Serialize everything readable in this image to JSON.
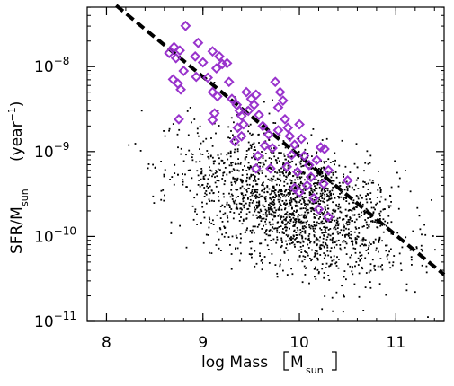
{
  "chart_data": {
    "type": "scatter",
    "xlabel": {
      "text": "log Mass",
      "unit_main": "M",
      "unit_sub": "sun"
    },
    "ylabel": {
      "text": "SFR/M",
      "sub": "sun",
      "unit": "year",
      "unit_sup": "−1"
    },
    "xlim": [
      7.8,
      11.5
    ],
    "ylim_log10": [
      -11,
      -7.3
    ],
    "y_scale": "log",
    "x_ticks": [
      {
        "value": 8,
        "label": "8"
      },
      {
        "value": 9,
        "label": "9"
      },
      {
        "value": 10,
        "label": "10"
      },
      {
        "value": 11,
        "label": "11"
      }
    ],
    "y_ticks": [
      {
        "exp": -8,
        "base": "10",
        "sup": "−8"
      },
      {
        "exp": -9,
        "base": "10",
        "sup": "−9"
      },
      {
        "exp": -10,
        "base": "10",
        "sup": "−10"
      },
      {
        "exp": -11,
        "base": "10",
        "sup": "−11"
      }
    ],
    "fit_line": {
      "x": [
        8.1,
        11.5
      ],
      "y_log10": [
        -7.28,
        -10.45
      ],
      "style": "dashed",
      "color": "#000000"
    },
    "highlight_series": {
      "marker": "diamond",
      "color": "#9933cc",
      "points": [
        [
          8.82,
          -7.52
        ],
        [
          8.65,
          -7.84
        ],
        [
          8.7,
          -7.77
        ],
        [
          8.72,
          -7.9
        ],
        [
          8.76,
          -7.81
        ],
        [
          8.69,
          -8.15
        ],
        [
          8.74,
          -8.2
        ],
        [
          8.8,
          -8.05
        ],
        [
          8.77,
          -8.27
        ],
        [
          8.75,
          -8.62
        ],
        [
          8.92,
          -7.88
        ],
        [
          8.93,
          -8.12
        ],
        [
          8.95,
          -7.72
        ],
        [
          9.0,
          -7.95
        ],
        [
          9.05,
          -8.13
        ],
        [
          9.1,
          -7.82
        ],
        [
          9.14,
          -8.02
        ],
        [
          9.17,
          -7.88
        ],
        [
          9.2,
          -7.97
        ],
        [
          9.15,
          -8.35
        ],
        [
          9.12,
          -8.55
        ],
        [
          9.1,
          -8.63
        ],
        [
          9.27,
          -8.18
        ],
        [
          9.3,
          -8.38
        ],
        [
          9.35,
          -8.45
        ],
        [
          9.38,
          -8.52
        ],
        [
          9.4,
          -8.58
        ],
        [
          9.42,
          -8.68
        ],
        [
          9.36,
          -8.72
        ],
        [
          9.33,
          -8.88
        ],
        [
          9.4,
          -8.82
        ],
        [
          9.45,
          -8.3
        ],
        [
          9.5,
          -8.38
        ],
        [
          9.53,
          -8.45
        ],
        [
          9.55,
          -8.33
        ],
        [
          9.47,
          -8.52
        ],
        [
          9.58,
          -8.57
        ],
        [
          9.62,
          -8.7
        ],
        [
          9.64,
          -8.93
        ],
        [
          9.57,
          -9.05
        ],
        [
          9.55,
          -9.2
        ],
        [
          9.68,
          -8.8
        ],
        [
          9.72,
          -8.96
        ],
        [
          9.75,
          -8.18
        ],
        [
          9.8,
          -8.3
        ],
        [
          9.78,
          -8.48
        ],
        [
          9.83,
          -8.4
        ],
        [
          9.85,
          -8.62
        ],
        [
          9.88,
          -8.72
        ],
        [
          9.9,
          -8.82
        ],
        [
          9.92,
          -9.04
        ],
        [
          9.87,
          -9.18
        ],
        [
          9.95,
          -8.92
        ],
        [
          10.0,
          -8.68
        ],
        [
          10.02,
          -8.85
        ],
        [
          9.98,
          -9.24
        ],
        [
          10.05,
          -9.05
        ],
        [
          10.1,
          -9.16
        ],
        [
          10.12,
          -9.3
        ],
        [
          10.18,
          -9.1
        ],
        [
          10.22,
          -8.95
        ],
        [
          10.26,
          -8.97
        ],
        [
          10.3,
          -9.22
        ],
        [
          10.25,
          -9.38
        ],
        [
          10.15,
          -9.55
        ],
        [
          10.2,
          -9.68
        ],
        [
          10.5,
          -9.34
        ],
        [
          10.3,
          -9.77
        ],
        [
          9.95,
          -9.43
        ],
        [
          10.0,
          -9.48
        ],
        [
          10.08,
          -9.4
        ],
        [
          9.7,
          -9.2
        ],
        [
          9.78,
          -8.75
        ],
        [
          9.25,
          -7.96
        ],
        [
          9.1,
          -8.3
        ]
      ]
    },
    "background_series": {
      "marker": "dot",
      "color": "#000000",
      "n_points": 2000,
      "seed": 12345
    }
  }
}
